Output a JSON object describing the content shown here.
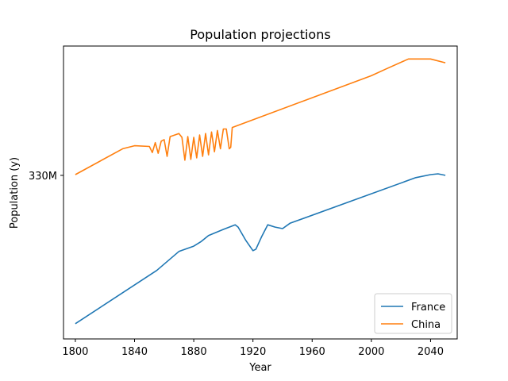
{
  "chart_data": {
    "type": "line",
    "title": "Population projections",
    "xlabel": "Year",
    "ylabel": "Population (y)",
    "xlim": [
      1792,
      2058
    ],
    "ylim": [
      0.2,
      4.05
    ],
    "x_ticks": [
      1800,
      1840,
      1880,
      1920,
      1960,
      2000,
      2040
    ],
    "y_ticks": [
      {
        "value": 2.35,
        "label": "330M"
      }
    ],
    "grid": false,
    "legend": "lower-right",
    "series": [
      {
        "name": "France",
        "color": "#1f77b4",
        "points": [
          [
            1800,
            0.4
          ],
          [
            1855,
            1.1
          ],
          [
            1870,
            1.35
          ],
          [
            1880,
            1.42
          ],
          [
            1885,
            1.48
          ],
          [
            1890,
            1.56
          ],
          [
            1900,
            1.64
          ],
          [
            1908,
            1.7
          ],
          [
            1910,
            1.67
          ],
          [
            1915,
            1.5
          ],
          [
            1920,
            1.36
          ],
          [
            1922,
            1.38
          ],
          [
            1926,
            1.55
          ],
          [
            1930,
            1.7
          ],
          [
            1935,
            1.67
          ],
          [
            1940,
            1.65
          ],
          [
            1945,
            1.72
          ],
          [
            2030,
            2.32
          ],
          [
            2040,
            2.36
          ],
          [
            2045,
            2.37
          ],
          [
            2050,
            2.35
          ]
        ]
      },
      {
        "name": "China",
        "color": "#ff7f0e",
        "points": [
          [
            1800,
            2.36
          ],
          [
            1832,
            2.7
          ],
          [
            1840,
            2.74
          ],
          [
            1850,
            2.73
          ],
          [
            1852,
            2.65
          ],
          [
            1854,
            2.78
          ],
          [
            1856,
            2.64
          ],
          [
            1858,
            2.8
          ],
          [
            1860,
            2.82
          ],
          [
            1862,
            2.6
          ],
          [
            1864,
            2.86
          ],
          [
            1870,
            2.9
          ],
          [
            1872,
            2.85
          ],
          [
            1874,
            2.55
          ],
          [
            1876,
            2.86
          ],
          [
            1878,
            2.56
          ],
          [
            1880,
            2.85
          ],
          [
            1882,
            2.58
          ],
          [
            1884,
            2.88
          ],
          [
            1886,
            2.6
          ],
          [
            1888,
            2.9
          ],
          [
            1890,
            2.62
          ],
          [
            1892,
            2.92
          ],
          [
            1894,
            2.66
          ],
          [
            1896,
            2.94
          ],
          [
            1898,
            2.7
          ],
          [
            1900,
            2.96
          ],
          [
            1902,
            2.96
          ],
          [
            1904,
            2.7
          ],
          [
            1905,
            2.72
          ],
          [
            1906,
            2.98
          ],
          [
            2000,
            3.66
          ],
          [
            2010,
            3.75
          ],
          [
            2025,
            3.88
          ],
          [
            2040,
            3.88
          ],
          [
            2050,
            3.83
          ]
        ]
      }
    ]
  }
}
